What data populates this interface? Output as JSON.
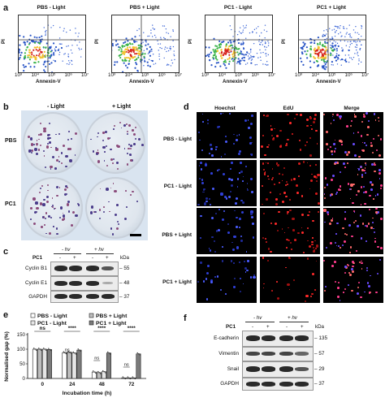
{
  "panels": {
    "a": {
      "letter": "a",
      "plots": [
        {
          "title": "PBS   - Light"
        },
        {
          "title": "PBS  + Light"
        },
        {
          "title": "PC1   - Light"
        },
        {
          "title": "PC1  + Light"
        }
      ],
      "y_axis_label": "PI",
      "x_axis_label": "Annexin-V",
      "tick_labels": [
        "10³",
        "10⁴",
        "10⁵",
        "10⁶",
        "10⁷"
      ]
    },
    "b": {
      "letter": "b",
      "col_labels": [
        "- Light",
        "+ Light"
      ],
      "row_labels": [
        "PBS",
        "PC1"
      ]
    },
    "c": {
      "letter": "c",
      "group_labels": [
        "- hv",
        "+ hv"
      ],
      "treatment_label": "PC1",
      "lane_signs": [
        "-",
        "+",
        "-",
        "+"
      ],
      "kda_label": "kDa",
      "rows": [
        {
          "label": "Cyclin B1",
          "mw": "55"
        },
        {
          "label": "Cyclin E1",
          "mw": "48"
        },
        {
          "label": "GAPDH",
          "mw": "37"
        }
      ]
    },
    "d": {
      "letter": "d",
      "col_labels": [
        "Hoechst",
        "EdU",
        "Merge"
      ],
      "row_labels": [
        "PBS  - Light",
        "PC1  - Light",
        "PBS + Light",
        "PC1 + Light"
      ]
    },
    "e": {
      "letter": "e",
      "legend": [
        "PBS  - Light",
        "PBS + Light",
        "PC1  - Light",
        "PC1 + Light"
      ],
      "colors": {
        "pbs_minus": "#ffffff",
        "pbs_plus": "#bdbdbd",
        "pc1_minus": "#e6e6e6",
        "pc1_plus": "#7a7a7a"
      },
      "chart_data": {
        "type": "bar",
        "categories": [
          "0",
          "24",
          "48",
          "72"
        ],
        "series": [
          {
            "name": "PBS  - Light",
            "values": [
              100,
              88,
              22,
              2
            ]
          },
          {
            "name": "PBS + Light",
            "values": [
              100,
              90,
              20,
              2
            ]
          },
          {
            "name": "PC1  - Light",
            "values": [
              100,
              87,
              23,
              2
            ]
          },
          {
            "name": "PC1 + Light",
            "values": [
              99,
              97,
              87,
              84
            ]
          }
        ],
        "xlabel": "Incubation time (h)",
        "ylabel": "Normalised gap (%)",
        "ylim": [
          0,
          150
        ],
        "yticks": [
          "0",
          "50",
          "100",
          "150"
        ],
        "significance": [
          {
            "group": "0",
            "label": "ns"
          },
          {
            "group": "24",
            "label": "****"
          },
          {
            "group": "48",
            "label": "****"
          },
          {
            "group": "72",
            "label": "****"
          },
          {
            "group": "24",
            "label": "ns"
          },
          {
            "group": "48",
            "label": "ns"
          },
          {
            "group": "72",
            "label": "ns"
          }
        ]
      }
    },
    "f": {
      "letter": "f",
      "group_labels": [
        "- hv",
        "+ hv"
      ],
      "treatment_label": "PC1",
      "lane_signs": [
        "-",
        "+",
        "-",
        "+"
      ],
      "kda_label": "kDa",
      "rows": [
        {
          "label": "E-cadherin",
          "mw": "135"
        },
        {
          "label": "Vimentin",
          "mw": "57"
        },
        {
          "label": "Snail",
          "mw": "29"
        },
        {
          "label": "GAPDH",
          "mw": "37"
        }
      ]
    }
  }
}
